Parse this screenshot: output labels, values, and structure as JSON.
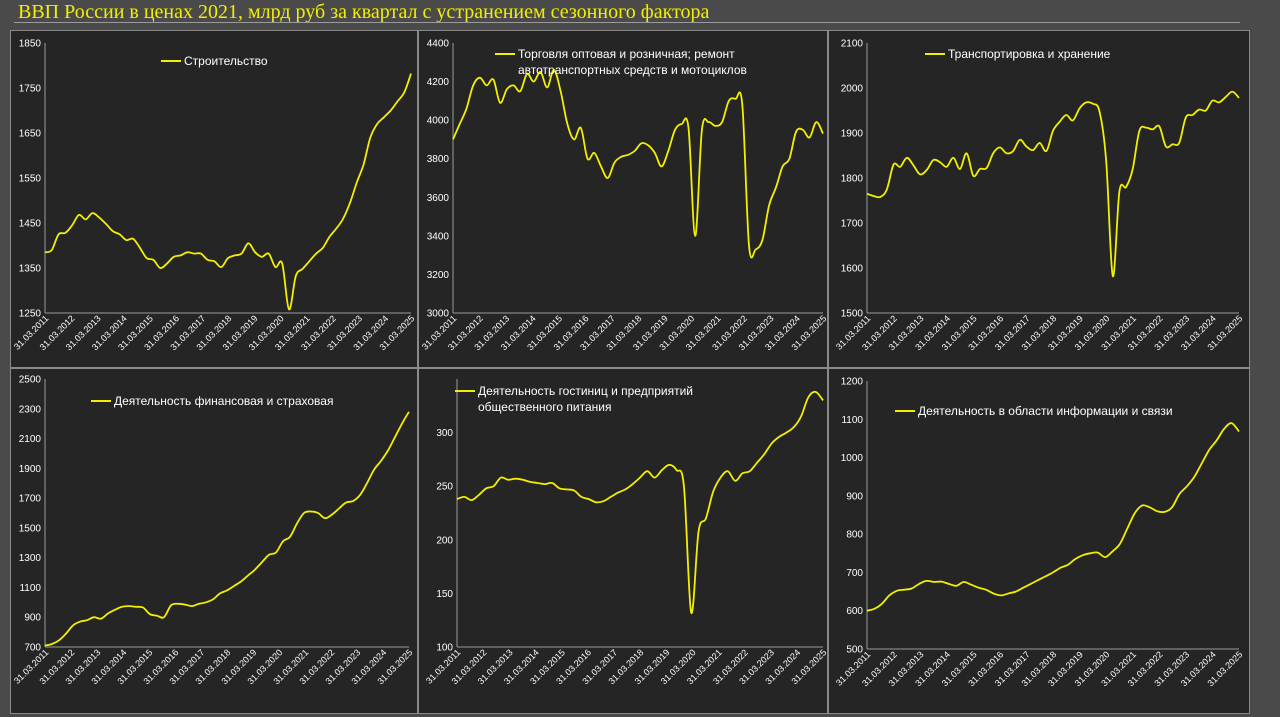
{
  "page_title": "ВВП России в ценах 2021, млрд руб за квартал с устранением сезонного фактора",
  "colors": {
    "title": "#f2ef00",
    "line": "#f2ef00",
    "panel_bg": "#252525",
    "page_bg": "#4a4a4a",
    "text": "#ffffff"
  },
  "x_tick_labels": [
    "31.03.2011",
    "31.03.2012",
    "31.03.2013",
    "31.03.2014",
    "31.03.2015",
    "31.03.2016",
    "31.03.2017",
    "31.03.2018",
    "31.03.2019",
    "31.03.2020",
    "31.03.2021",
    "31.03.2022",
    "31.03.2023",
    "31.03.2024",
    "31.03.2025"
  ],
  "chart_data": [
    {
      "type": "line",
      "series": [
        {
          "name": "Строительство",
          "values": [
            1385,
            1390,
            1425,
            1428,
            1445,
            1468,
            1458,
            1472,
            1462,
            1448,
            1432,
            1425,
            1412,
            1415,
            1395,
            1372,
            1368,
            1350,
            1360,
            1375,
            1378,
            1385,
            1382,
            1382,
            1368,
            1365,
            1352,
            1372,
            1378,
            1382,
            1405,
            1385,
            1375,
            1382,
            1352,
            1360,
            1258,
            1332,
            1348,
            1365,
            1382,
            1395,
            1420,
            1438,
            1460,
            1495,
            1540,
            1580,
            1640,
            1670,
            1685,
            1700,
            1720,
            1740,
            1782
          ]
        }
      ],
      "ylim": [
        1250,
        1850
      ],
      "yticks": [
        1250,
        1350,
        1450,
        1550,
        1650,
        1750,
        1850
      ],
      "grid": false,
      "legend": "top"
    },
    {
      "type": "line",
      "series": [
        {
          "name": "Торговля оптовая и розничная; ремонт автотранспортных средств и мотоциклов",
          "values": [
            3900,
            3980,
            4060,
            4180,
            4220,
            4180,
            4210,
            4090,
            4160,
            4180,
            4150,
            4240,
            4200,
            4250,
            4170,
            4260,
            4150,
            3980,
            3900,
            3960,
            3800,
            3830,
            3760,
            3700,
            3780,
            3810,
            3820,
            3840,
            3880,
            3870,
            3830,
            3760,
            3840,
            3950,
            3980,
            3960,
            3400,
            3950,
            3990,
            3970,
            3990,
            4100,
            4110,
            4080,
            3350,
            3330,
            3380,
            3560,
            3650,
            3760,
            3800,
            3940,
            3950,
            3910,
            3990,
            3930
          ]
        }
      ],
      "ylim": [
        3000,
        4400
      ],
      "yticks": [
        3000,
        3200,
        3400,
        3600,
        3800,
        4000,
        4200,
        4400
      ],
      "grid": false,
      "legend": "top"
    },
    {
      "type": "line",
      "series": [
        {
          "name": "Транспортировка и хранение",
          "values": [
            1765,
            1760,
            1758,
            1775,
            1830,
            1825,
            1845,
            1828,
            1808,
            1818,
            1840,
            1835,
            1825,
            1845,
            1820,
            1855,
            1805,
            1820,
            1822,
            1855,
            1868,
            1855,
            1860,
            1885,
            1870,
            1862,
            1878,
            1860,
            1905,
            1925,
            1940,
            1928,
            1955,
            1968,
            1965,
            1948,
            1840,
            1582,
            1770,
            1780,
            1820,
            1905,
            1912,
            1908,
            1915,
            1870,
            1875,
            1878,
            1935,
            1940,
            1952,
            1950,
            1972,
            1968,
            1980,
            1992,
            1978
          ]
        }
      ],
      "ylim": [
        1500,
        2100
      ],
      "yticks": [
        1500,
        1600,
        1700,
        1800,
        1900,
        2000,
        2100
      ],
      "grid": false,
      "legend": "top"
    },
    {
      "type": "line",
      "series": [
        {
          "name": "Деятельность финансовая и страховая",
          "values": [
            710,
            720,
            745,
            790,
            845,
            870,
            880,
            900,
            890,
            925,
            950,
            970,
            975,
            970,
            965,
            920,
            910,
            900,
            980,
            990,
            985,
            975,
            990,
            1000,
            1020,
            1060,
            1080,
            1110,
            1140,
            1180,
            1220,
            1270,
            1320,
            1335,
            1410,
            1440,
            1530,
            1600,
            1610,
            1600,
            1565,
            1590,
            1630,
            1670,
            1680,
            1720,
            1800,
            1890,
            1950,
            2020,
            2110,
            2200,
            2280
          ]
        }
      ],
      "ylim": [
        700,
        2500
      ],
      "yticks": [
        700,
        900,
        1100,
        1300,
        1500,
        1700,
        1900,
        2100,
        2300,
        2500
      ],
      "grid": false,
      "legend": "top"
    },
    {
      "type": "line",
      "series": [
        {
          "name": "Деятельность гостиниц и предприятий общественного питания",
          "values": [
            238,
            240,
            237,
            242,
            248,
            250,
            258,
            256,
            257,
            256,
            254,
            253,
            252,
            253,
            248,
            247,
            246,
            240,
            238,
            235,
            236,
            240,
            244,
            247,
            252,
            258,
            264,
            258,
            265,
            270,
            265,
            250,
            132,
            208,
            220,
            245,
            258,
            264,
            255,
            262,
            264,
            272,
            280,
            290,
            296,
            300,
            305,
            315,
            333,
            338,
            330
          ]
        }
      ],
      "ylim": [
        100,
        350
      ],
      "yticks": [
        100,
        150,
        200,
        250,
        300
      ],
      "grid": false,
      "legend": "top"
    },
    {
      "type": "line",
      "series": [
        {
          "name": "Деятельность в области информации и связи",
          "values": [
            600,
            605,
            618,
            640,
            652,
            655,
            658,
            670,
            678,
            675,
            676,
            670,
            665,
            675,
            668,
            660,
            655,
            645,
            640,
            645,
            650,
            660,
            670,
            680,
            690,
            700,
            712,
            720,
            735,
            745,
            750,
            752,
            740,
            755,
            775,
            815,
            855,
            875,
            870,
            860,
            858,
            870,
            905,
            925,
            950,
            985,
            1020,
            1045,
            1075,
            1090,
            1068
          ]
        }
      ],
      "ylim": [
        500,
        1200
      ],
      "yticks": [
        500,
        600,
        700,
        800,
        900,
        1000,
        1100,
        1200
      ],
      "grid": false,
      "legend": "top"
    }
  ]
}
